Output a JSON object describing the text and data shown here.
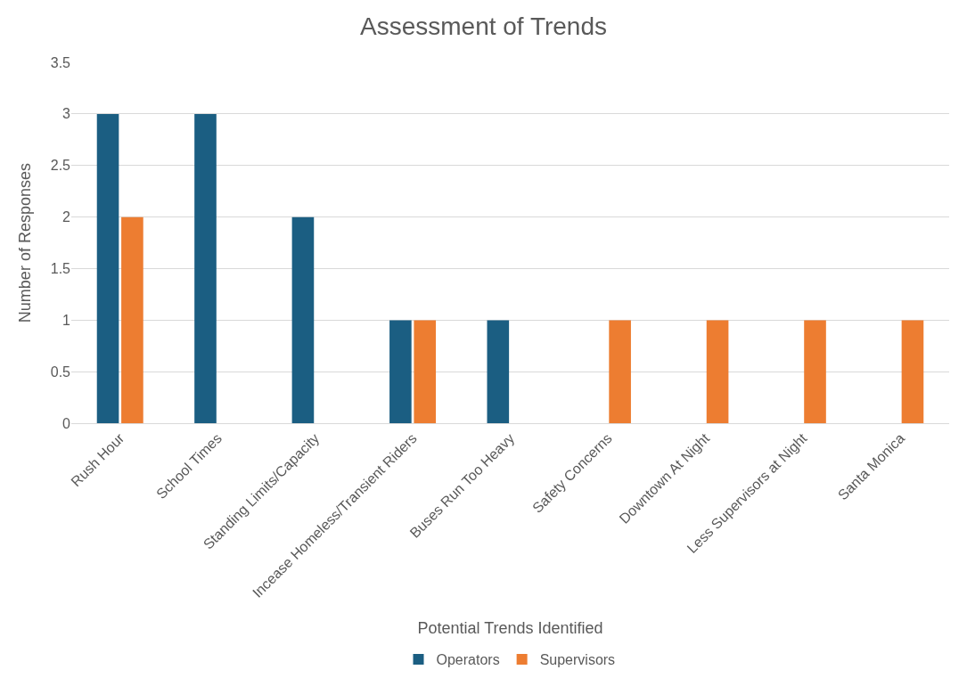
{
  "chart_data": {
    "type": "bar",
    "title": "Assessment of Trends",
    "xlabel": "Potential Trends Identified",
    "ylabel": "Number of Responses",
    "categories": [
      "Rush Hour",
      "School Times",
      "Standing Limits/Capacity",
      "Incease Homeless/Transient Riders",
      "Buses Run Too Heavy",
      "Safety Concerns",
      "Downtown At Night",
      "Less Supervisors at Night",
      "Santa Monica"
    ],
    "series": [
      {
        "name": "Operators",
        "color": "#1b5e82",
        "values": [
          3,
          3,
          2,
          1,
          1,
          0,
          0,
          0,
          0
        ]
      },
      {
        "name": "Supervisors",
        "color": "#ed7d31",
        "values": [
          2,
          0,
          0,
          1,
          0,
          1,
          1,
          1,
          1
        ]
      }
    ],
    "ylim": [
      0,
      3.5
    ],
    "yticks": [
      0,
      0.5,
      1,
      1.5,
      2,
      2.5,
      3,
      3.5
    ],
    "grid": "y",
    "legend": "bottom"
  }
}
